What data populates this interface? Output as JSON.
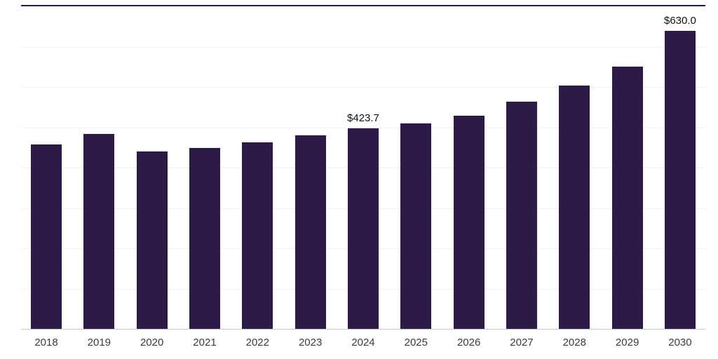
{
  "chart_data": {
    "type": "bar",
    "title": "",
    "xlabel": "",
    "ylabel": "",
    "categories": [
      "2018",
      "2019",
      "2020",
      "2021",
      "2022",
      "2023",
      "2024",
      "2025",
      "2026",
      "2027",
      "2028",
      "2029",
      "2030"
    ],
    "values": [
      390,
      412,
      376,
      383,
      394,
      410,
      423.7,
      434,
      451,
      480,
      515,
      555,
      630
    ],
    "annotations": [
      {
        "category": "2024",
        "label": "$423.7"
      },
      {
        "category": "2030",
        "label": "$630.0"
      }
    ],
    "ylim": [
      0,
      680
    ],
    "grid": "horizontal-faint",
    "grid_divisions": 8,
    "legend": false,
    "bar_color": "#2e1a47",
    "top_border_color": "#2e1a47",
    "axis_line_color": "#c9c9c9"
  }
}
